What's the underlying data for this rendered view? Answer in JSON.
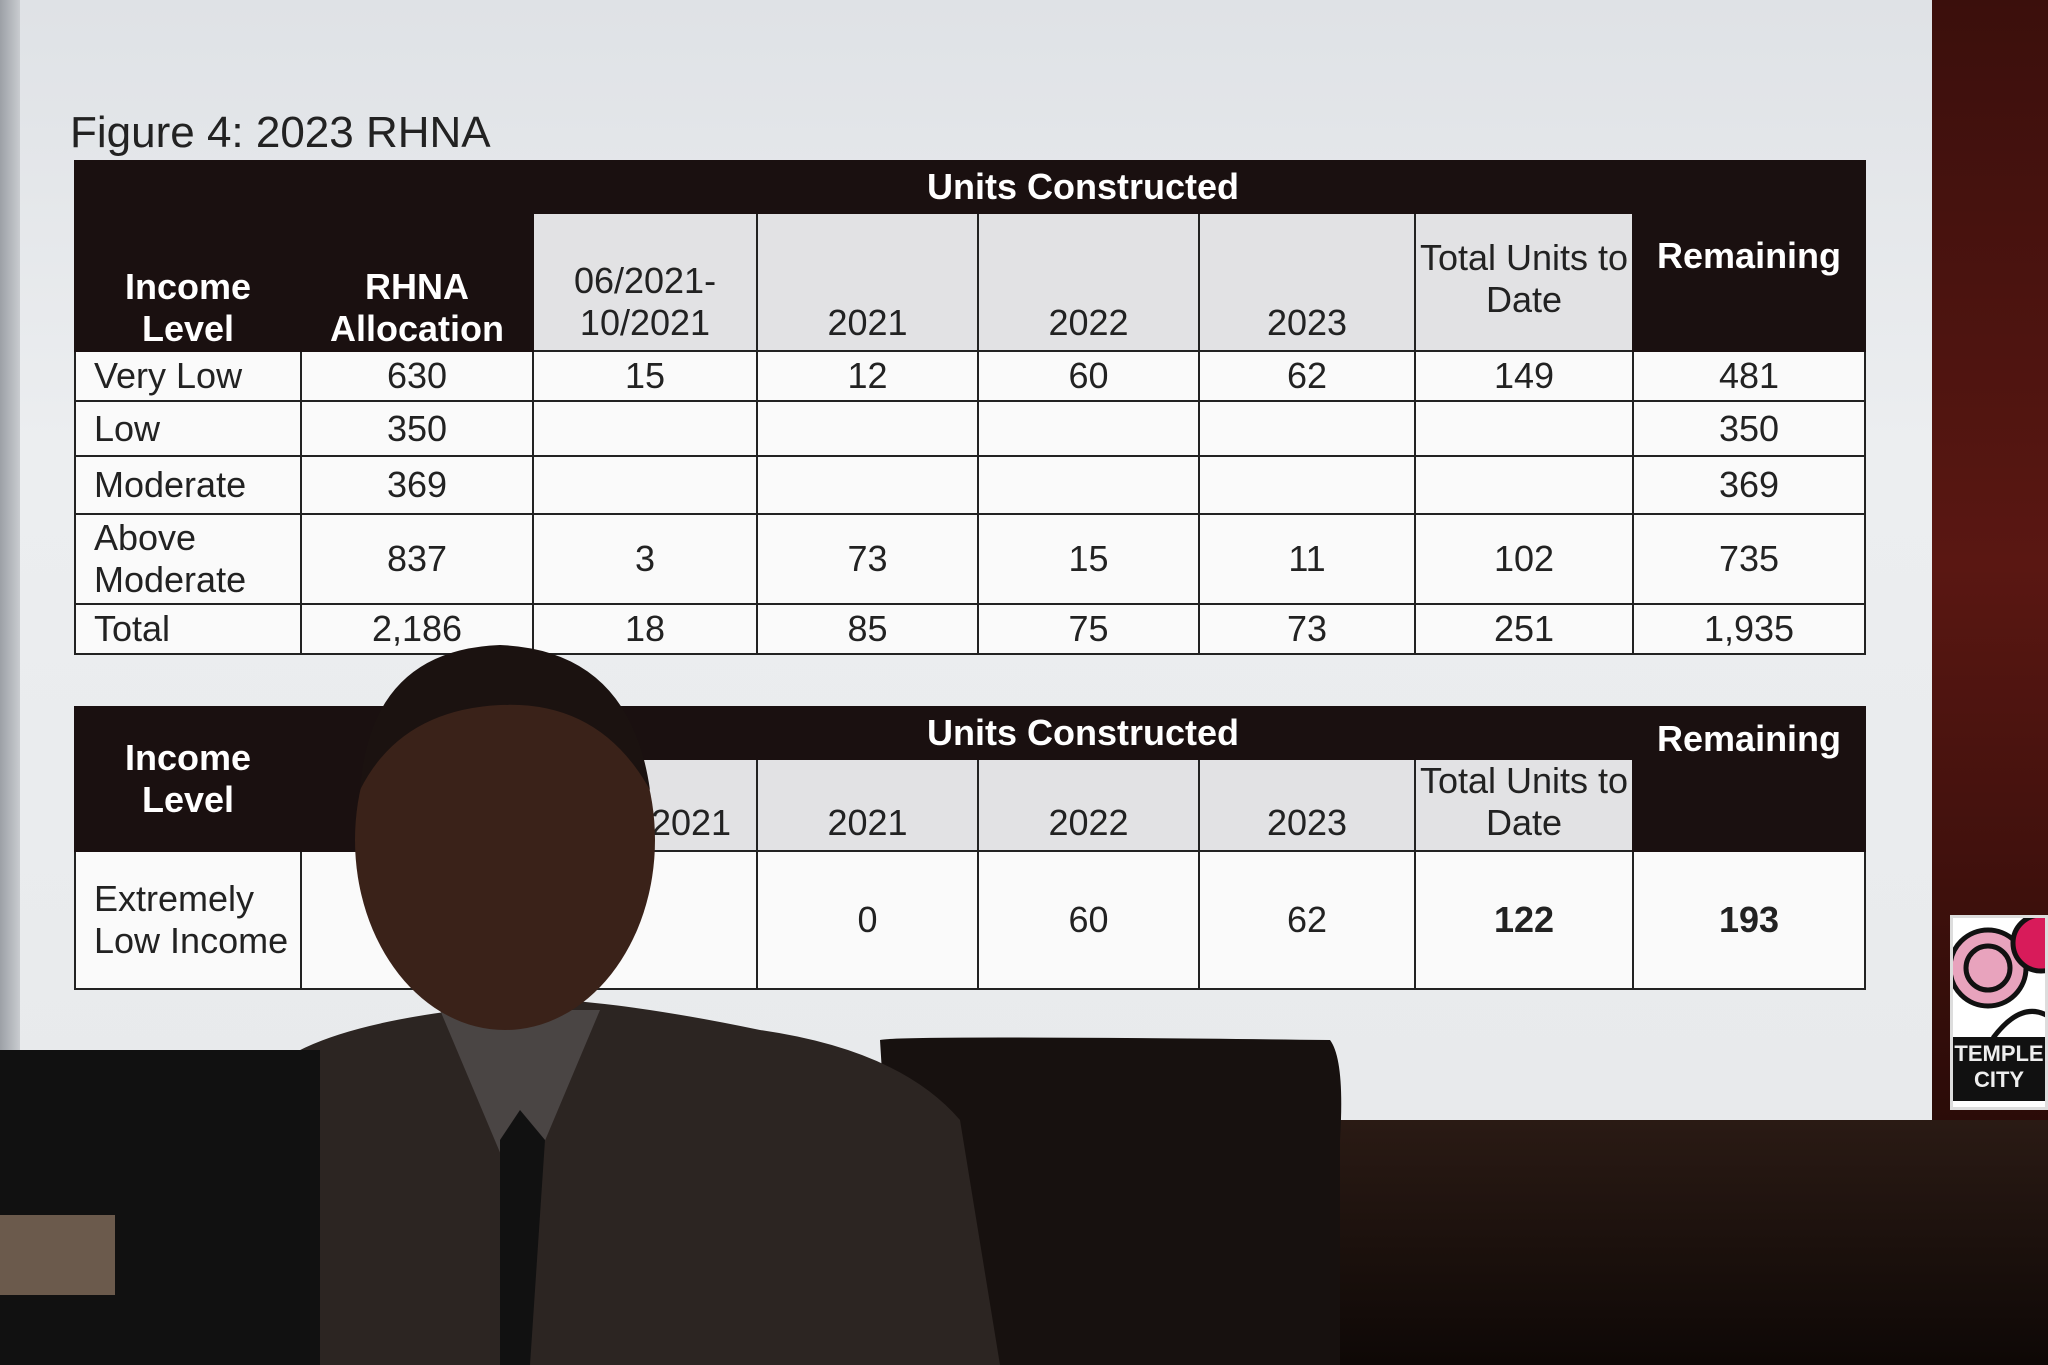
{
  "figure_title": "Figure 4: 2023 RHNA",
  "table1": {
    "group_header": "Units Constructed",
    "headers": [
      "Income Level",
      "RHNA Allocation",
      "06/2021-10/2021",
      "2021",
      "2022",
      "2023",
      "Total Units to Date",
      "Remaining"
    ],
    "rows": [
      [
        "Very Low",
        "630",
        "15",
        "12",
        "60",
        "62",
        "149",
        "481"
      ],
      [
        "Low",
        "350",
        "",
        "",
        "",
        "",
        "",
        "350"
      ],
      [
        "Moderate",
        "369",
        "",
        "",
        "",
        "",
        "",
        "369"
      ],
      [
        "Above Moderate",
        "837",
        "3",
        "73",
        "15",
        "11",
        "102",
        "735"
      ],
      [
        "Total",
        "2,186",
        "18",
        "85",
        "75",
        "73",
        "251",
        "1,935"
      ]
    ]
  },
  "table2": {
    "group_header": "Units Constructed",
    "headers": [
      "Income Level",
      "",
      "2021-2021",
      "2021",
      "2022",
      "2023",
      "Total Units to Date",
      "Remaining"
    ],
    "rows": [
      [
        "Extremely Low Income",
        "",
        "",
        "0",
        "60",
        "62",
        "122",
        "193"
      ]
    ]
  },
  "logo": {
    "text": "TEMPLE CITY",
    "colors": [
      "#e8a3bd",
      "#d81b5a",
      "#111111"
    ]
  }
}
